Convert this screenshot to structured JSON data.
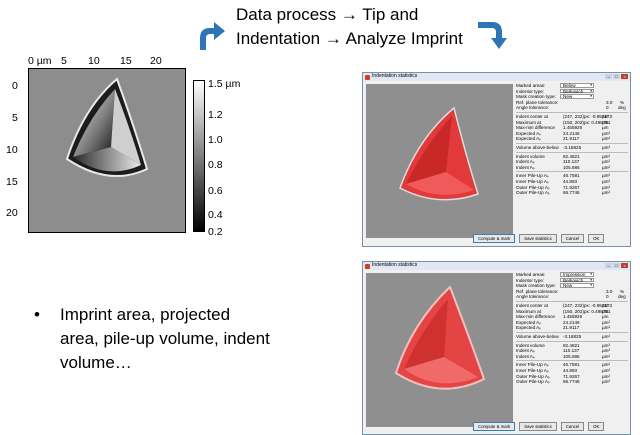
{
  "header": {
    "line1": "Data process → Tip and",
    "line2": "Indentation → Analyze Imprint"
  },
  "afm": {
    "x_ticks": [
      "0 µm",
      "5",
      "10",
      "15",
      "20"
    ],
    "y_ticks": [
      "0",
      "5",
      "10",
      "15",
      "20"
    ],
    "colorbar_labels": [
      "1.5 µm",
      "1.2",
      "1.0",
      "0.8",
      "0.6",
      "0.4",
      "0.2"
    ]
  },
  "bullet": {
    "dot": "•",
    "text": "Imprint area, projected area, pile-up volume, indent volume…"
  },
  "dialog_top": {
    "title": "Indentation statistics",
    "marked_areas_label": "Marked areas:",
    "marked_areas_value": "Below",
    "indentor_type_label": "Indentor type:",
    "indentor_type_value": "Berkovich",
    "mask_creation_label": "Mask creation type:",
    "mask_creation_value": "New"
  },
  "dialog_bottom": {
    "title": "Indentation statistics",
    "marked_areas_label": "Marked areas:",
    "marked_areas_value": "Impression",
    "indentor_type_label": "Indentor type:",
    "indentor_type_value": "Berkovich",
    "mask_creation_label": "Mask creation type:",
    "mask_creation_value": "New"
  },
  "stats": {
    "ref_plane_tol_label": "Ref. plane tolerance:",
    "ref_plane_tol_value": "3.0",
    "ref_plane_tol_unit": "%",
    "angle_tol_label": "Angle tolerance:",
    "angle_tol_value": "0",
    "angle_tol_unit": "deg",
    "rows1": [
      {
        "label": "Indent center at",
        "value": "(247, 232)px: -0.957173",
        "unit": "µm"
      },
      {
        "label": "Maximum at",
        "value": "(150, 202)px: 0.498751",
        "unit": "µm"
      },
      {
        "label": "Max-min difference",
        "value": "1.455926",
        "unit": "µm"
      },
      {
        "label": "Expected Aₚ",
        "value": "24.2146",
        "unit": "µm²"
      },
      {
        "label": "Expected Aₚ",
        "value": "21.9117",
        "unit": "µm²"
      }
    ],
    "rows2": [
      {
        "label": "Volume above-below",
        "value": "-3.18825",
        "unit": "µm³"
      }
    ],
    "rows3": [
      {
        "label": "Indent volume",
        "value": "82.4821",
        "unit": "µm³"
      },
      {
        "label": "Indent Aₚ",
        "value": "110.137",
        "unit": "µm²"
      },
      {
        "label": "Indent Aₚ",
        "value": "105.686",
        "unit": "µm²"
      }
    ],
    "rows4": [
      {
        "label": "Inner Pile-Up Aₚ",
        "value": "46.7591",
        "unit": "µm²"
      },
      {
        "label": "Inner Pile-Up Aₚ",
        "value": "44.893",
        "unit": "µm²"
      },
      {
        "label": "Outer Pile-Up Aₚ",
        "value": "71.9267",
        "unit": "µm²"
      },
      {
        "label": "Outer Pile-Up Aₚ",
        "value": "66.7746",
        "unit": "µm²"
      }
    ],
    "btn_compute": "Compute & mark",
    "btn_save": "Save statistics",
    "btn_cancel": "Cancel",
    "btn_ok": "OK"
  },
  "colors": {
    "arrow": "#2e75b6",
    "mask_red": "#e23a3a",
    "afm_gray": "#8d8d8d"
  }
}
